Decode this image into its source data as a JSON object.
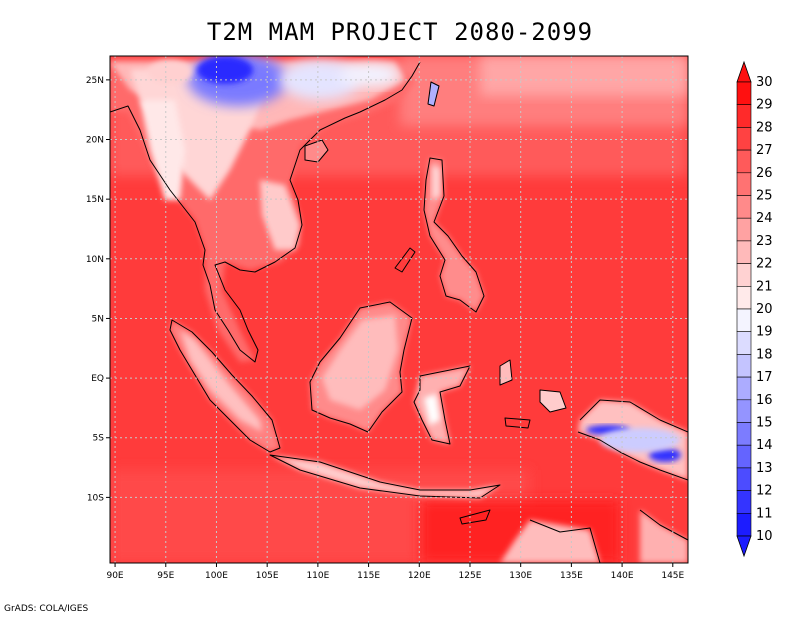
{
  "title": "T2M MAM PROJECT 2080-2099",
  "credit": "GrADS: COLA/IGES",
  "map": {
    "lon_range": [
      89.5,
      146.5
    ],
    "lat_range": [
      -15.5,
      27.0
    ],
    "lon_ticks": [
      {
        "value": 90,
        "label": "90E"
      },
      {
        "value": 95,
        "label": "95E"
      },
      {
        "value": 100,
        "label": "100E"
      },
      {
        "value": 105,
        "label": "105E"
      },
      {
        "value": 110,
        "label": "110E"
      },
      {
        "value": 115,
        "label": "115E"
      },
      {
        "value": 120,
        "label": "120E"
      },
      {
        "value": 125,
        "label": "125E"
      },
      {
        "value": 130,
        "label": "130E"
      },
      {
        "value": 135,
        "label": "135E"
      },
      {
        "value": 140,
        "label": "140E"
      },
      {
        "value": 145,
        "label": "145E"
      }
    ],
    "lat_ticks": [
      {
        "value": 25,
        "label": "25N"
      },
      {
        "value": 20,
        "label": "20N"
      },
      {
        "value": 15,
        "label": "15N"
      },
      {
        "value": 10,
        "label": "10N"
      },
      {
        "value": 5,
        "label": "5N"
      },
      {
        "value": 0,
        "label": "EQ"
      },
      {
        "value": -5,
        "label": "5S"
      },
      {
        "value": -10,
        "label": "10S"
      }
    ],
    "grid": "dotted",
    "colorbar": {
      "min": 10,
      "max": 30,
      "labels": [
        "30",
        "29",
        "28",
        "27",
        "26",
        "25",
        "24",
        "23",
        "22",
        "21",
        "20",
        "19",
        "18",
        "17",
        "16",
        "15",
        "14",
        "13",
        "12",
        "11",
        "10"
      ],
      "colors": [
        "#ff1010",
        "#ff2a2a",
        "#ff4242",
        "#ff5a5a",
        "#ff7272",
        "#ff8a8a",
        "#ffa2a2",
        "#ffbaba",
        "#ffd2d2",
        "#ffeaea",
        "#f4f4ff",
        "#dcdcff",
        "#c4c4ff",
        "#acacff",
        "#9494ff",
        "#7c7cff",
        "#6464ff",
        "#4c4cff",
        "#3434ff",
        "#1c1cff"
      ]
    }
  }
}
